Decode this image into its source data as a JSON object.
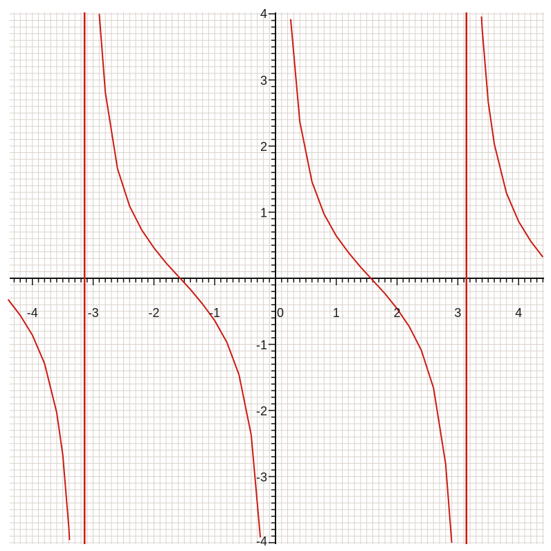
{
  "chart_data": {
    "type": "line",
    "title": "",
    "xlabel": "",
    "ylabel": "",
    "xlim": [
      -4.4,
      4.4
    ],
    "ylim": [
      -4,
      4
    ],
    "grid": true,
    "grid_minor_step": 0.1,
    "x_ticks": [
      {
        "value": -4,
        "label": "-4"
      },
      {
        "value": -3,
        "label": "-3"
      },
      {
        "value": -2,
        "label": "-2"
      },
      {
        "value": -1,
        "label": "-1"
      },
      {
        "value": 0,
        "label": "0"
      },
      {
        "value": 1,
        "label": "1"
      },
      {
        "value": 2,
        "label": "2"
      },
      {
        "value": 3,
        "label": "3"
      },
      {
        "value": 4,
        "label": "4"
      }
    ],
    "y_ticks": [
      {
        "value": 4,
        "label": "4"
      },
      {
        "value": 3,
        "label": "3"
      },
      {
        "value": 2,
        "label": "2"
      },
      {
        "value": 1,
        "label": "1"
      },
      {
        "value": -1,
        "label": "-1"
      },
      {
        "value": -2,
        "label": "-2"
      },
      {
        "value": -3,
        "label": "-3"
      },
      {
        "value": -4,
        "label": "-4"
      }
    ],
    "asymptotes_x": [
      -3.14159,
      3.14159
    ],
    "series": [
      {
        "function": "cot",
        "branches": [
          {
            "x": [
              -4.4,
              -4.2,
              -4.0,
              -3.8,
              -3.6,
              -3.5,
              -3.4,
              -3.39
            ],
            "y": [
              -0.32,
              -0.56,
              -0.86,
              -1.29,
              -2.03,
              -2.67,
              -3.78,
              -3.96
            ]
          },
          {
            "x": [
              -2.9,
              -2.8,
              -2.6,
              -2.4,
              -2.2,
              -2.0,
              -1.8,
              -1.57,
              -1.4,
              -1.2,
              -1.0,
              -0.8,
              -0.6,
              -0.4,
              -0.25
            ],
            "y": [
              4.0,
              2.81,
              1.66,
              1.09,
              0.73,
              0.46,
              0.23,
              0.0,
              -0.17,
              -0.39,
              -0.64,
              -0.97,
              -1.46,
              -2.37,
              -3.92
            ]
          },
          {
            "x": [
              0.25,
              0.4,
              0.6,
              0.8,
              1.0,
              1.2,
              1.4,
              1.57,
              1.8,
              2.0,
              2.2,
              2.4,
              2.6,
              2.8,
              2.9
            ],
            "y": [
              3.92,
              2.37,
              1.46,
              0.97,
              0.64,
              0.39,
              0.17,
              0.0,
              -0.23,
              -0.46,
              -0.73,
              -1.09,
              -1.66,
              -2.81,
              -4.0
            ]
          },
          {
            "x": [
              3.39,
              3.4,
              3.5,
              3.6,
              3.8,
              4.0,
              4.2,
              4.4
            ],
            "y": [
              3.96,
              3.78,
              2.67,
              2.03,
              1.29,
              0.86,
              0.56,
              0.32
            ]
          }
        ]
      }
    ],
    "colors": {
      "curve": "#cc1a12",
      "asymptote": "#cc1a12",
      "grid": "#d9d2cc",
      "axis": "#111111"
    }
  }
}
